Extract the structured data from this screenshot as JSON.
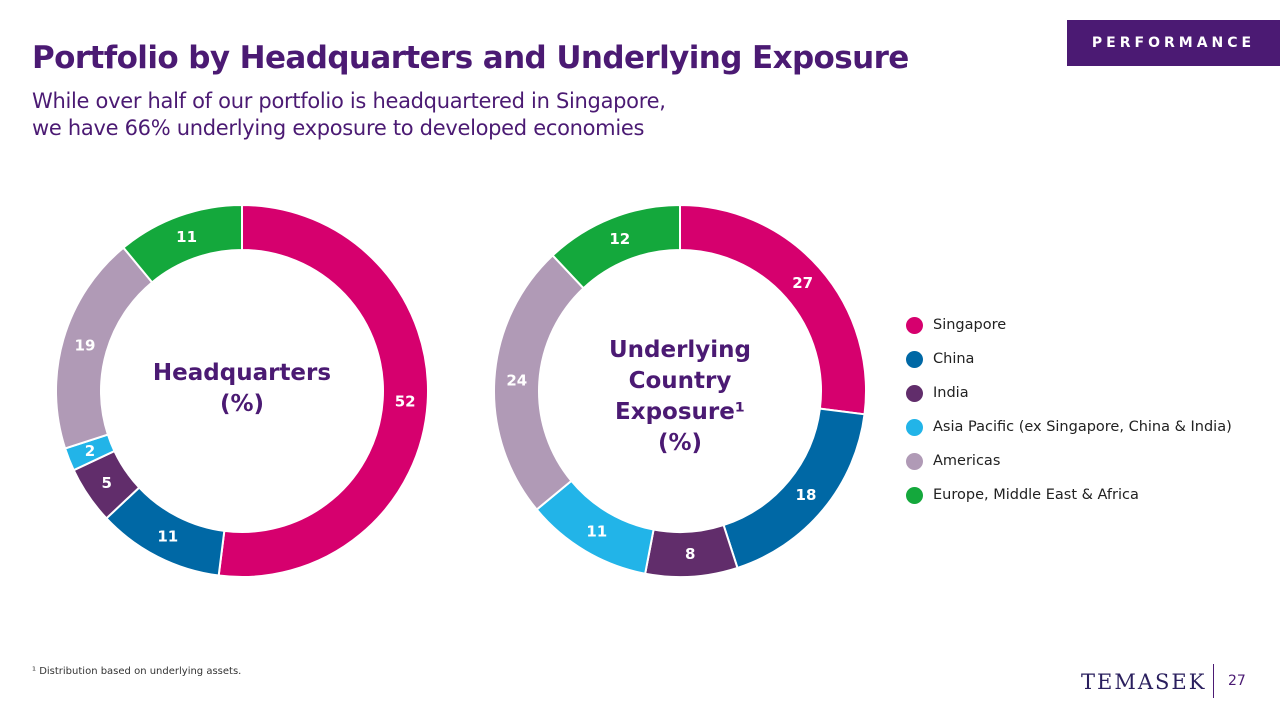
{
  "badge": "PERFORMANCE",
  "title": "Portfolio by Headquarters and Underlying Exposure",
  "subtitle": {
    "line1": "While over half of our portfolio is headquartered in Singapore,",
    "line2": "we have 66% underlying exposure to developed economies"
  },
  "colors": {
    "singapore": "#d6006e",
    "china": "#0068a5",
    "india": "#612d6b",
    "asia_pacific": "#22b4e8",
    "americas": "#b09ab6",
    "emea": "#14a83c",
    "brand_purple": "#4b1a73"
  },
  "chart_data": [
    {
      "type": "pie",
      "center_label": [
        "Headquarters",
        "(%)"
      ],
      "categories": [
        "Singapore",
        "China",
        "India",
        "Asia Pacific (ex Singapore, China & India)",
        "Americas",
        "Europe, Middle East & Africa"
      ],
      "values": [
        52,
        11,
        5,
        2,
        19,
        11
      ]
    },
    {
      "type": "pie",
      "center_label": [
        "Underlying",
        "Country",
        "Exposure¹",
        "(%)"
      ],
      "categories": [
        "Singapore",
        "China",
        "India",
        "Asia Pacific (ex Singapore, China & India)",
        "Americas",
        "Europe, Middle East & Africa"
      ],
      "values": [
        27,
        18,
        8,
        11,
        24,
        12
      ]
    }
  ],
  "legend": [
    {
      "label": "Singapore",
      "color": "#d6006e"
    },
    {
      "label": "China",
      "color": "#0068a5"
    },
    {
      "label": "India",
      "color": "#612d6b"
    },
    {
      "label": "Asia Pacific (ex Singapore, China & India)",
      "color": "#22b4e8"
    },
    {
      "label": "Americas",
      "color": "#b09ab6"
    },
    {
      "label": "Europe, Middle East & Africa",
      "color": "#14a83c"
    }
  ],
  "footnote": "¹ Distribution based on underlying assets.",
  "logo": "TEMASEK",
  "page_number": "27"
}
